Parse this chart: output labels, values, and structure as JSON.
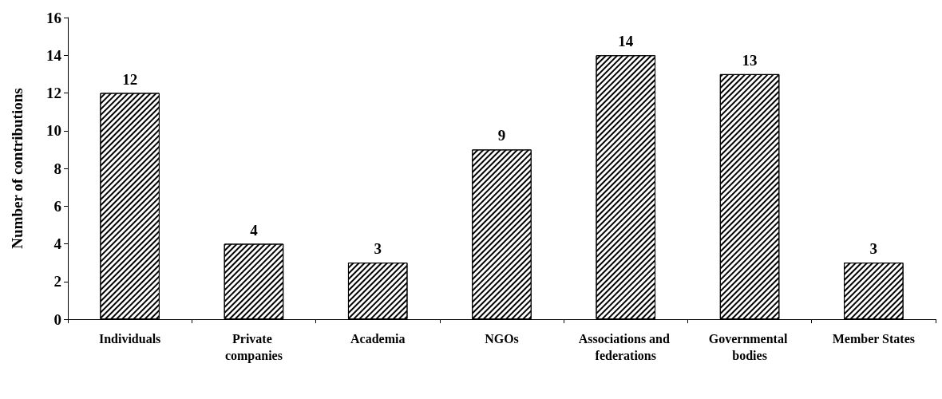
{
  "chart_data": {
    "type": "bar",
    "ylabel": "Number of contributions",
    "categories": [
      "Individuals",
      "Private companies",
      "Academia",
      "NGOs",
      "Associations and federations",
      "Governmental bodies",
      "Member States"
    ],
    "values": [
      12,
      4,
      3,
      9,
      14,
      13,
      3
    ],
    "color": "#000000",
    "ylim": [
      0,
      16
    ],
    "yticks": [
      0,
      2,
      4,
      6,
      8,
      10,
      12,
      14,
      16
    ],
    "grid": false,
    "data_labels": true
  }
}
